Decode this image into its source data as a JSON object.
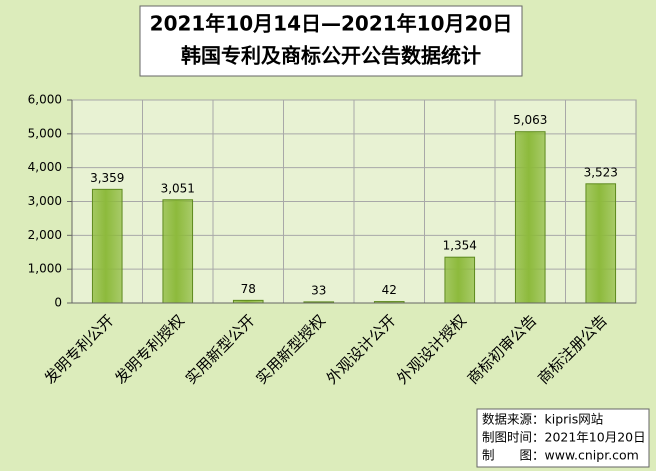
{
  "chart_data": {
    "type": "bar",
    "title": "2021年10月14日—2021年10月20日",
    "subtitle": "韩国专利及商标公开公告数据统计",
    "categories": [
      "发明专利公开",
      "发明专利授权",
      "实用新型公开",
      "实用新型授权",
      "外观设计公开",
      "外观设计授权",
      "商标初审公告",
      "商标注册公告"
    ],
    "values": [
      3359,
      3051,
      78,
      33,
      42,
      1354,
      5063,
      3523
    ],
    "value_labels": [
      "3,359",
      "3,051",
      "78",
      "33",
      "42",
      "1,354",
      "5,063",
      "3,523"
    ],
    "color": "#8dba3c",
    "ylim": [
      0,
      6000
    ],
    "yticks": [
      0,
      {
        "value": 1000,
        "label": "1,000"
      },
      {
        "value": 2000,
        "label": "2,000"
      },
      {
        "value": 3000,
        "label": "3,000"
      },
      {
        "value": 4000,
        "label": "4,000"
      },
      {
        "value": 5000,
        "label": "5,000"
      },
      {
        "value": 6000,
        "label": "6,000"
      }
    ],
    "grid": true,
    "source_lines": [
      "数据来源：kipris网站",
      "制图时间：2021年10月20日",
      "制　　图：www.cnipr.com"
    ]
  }
}
